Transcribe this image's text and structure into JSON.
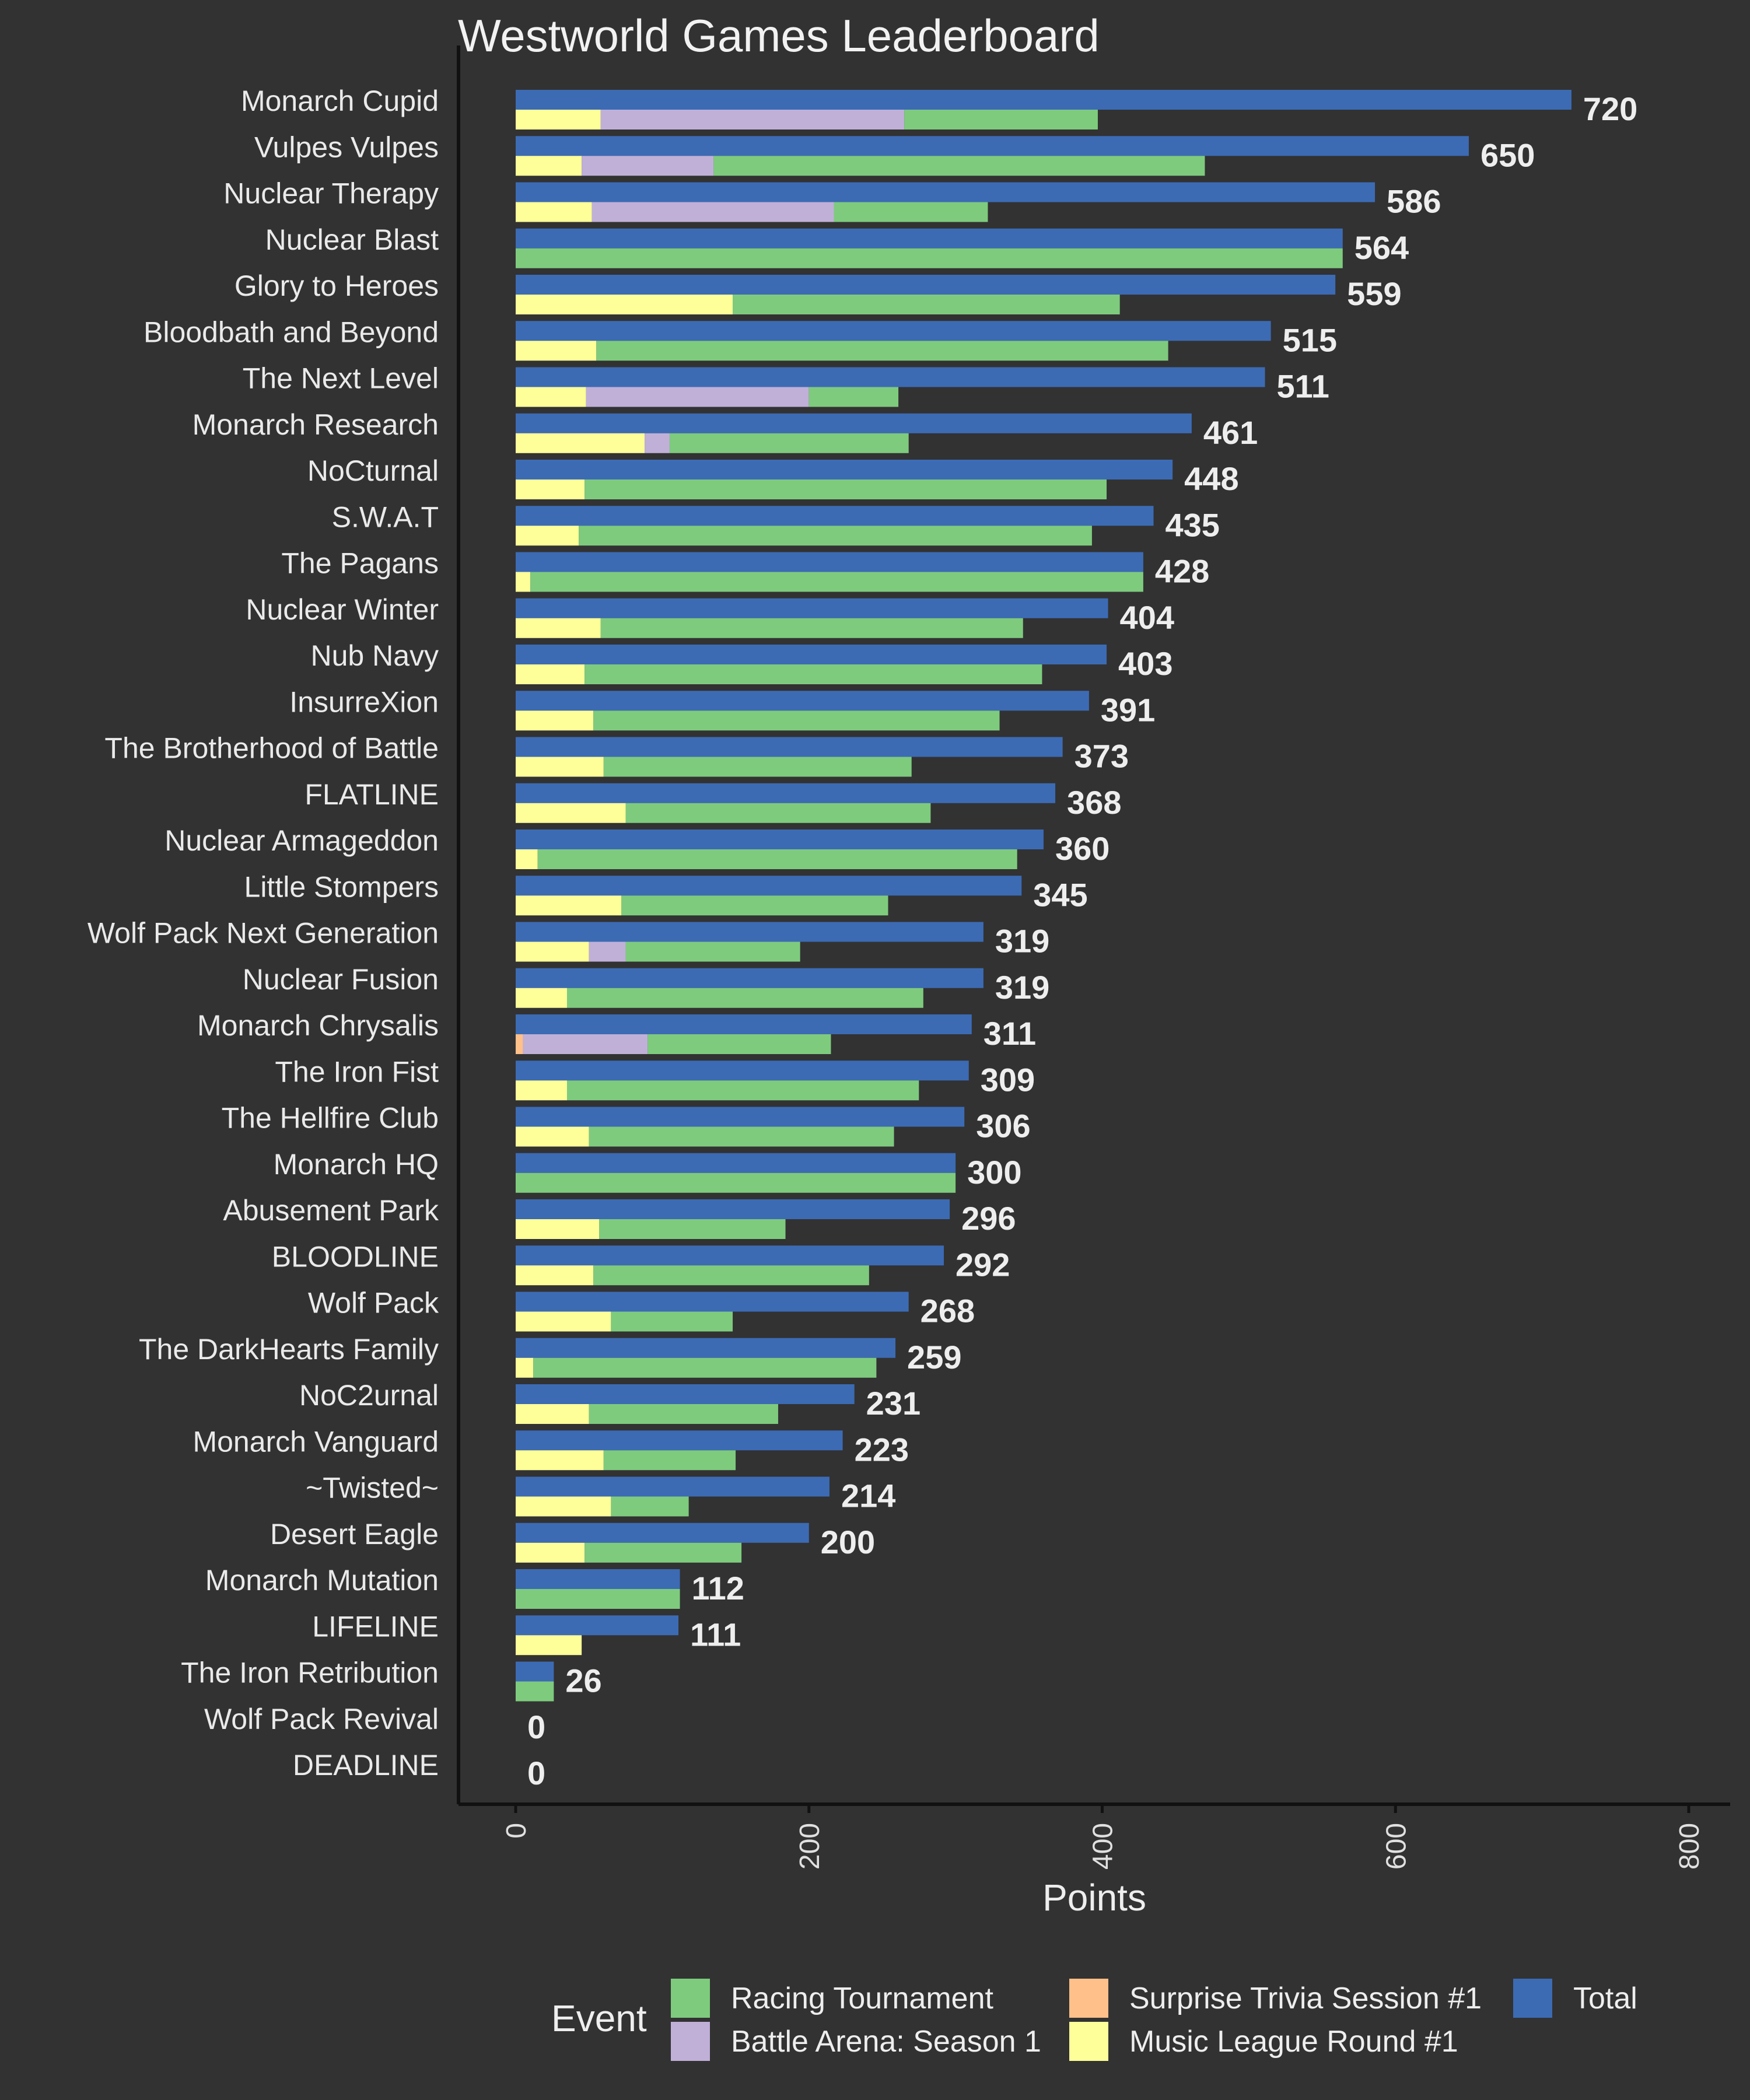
{
  "chart_data": {
    "type": "bar",
    "orientation": "horizontal",
    "title": "Westworld Games Leaderboard",
    "xlabel": "Points",
    "ylabel": "",
    "xlim": [
      0,
      800
    ],
    "xticks": [
      0,
      200,
      400,
      600,
      800
    ],
    "grid": false,
    "legend_position": "bottom",
    "legend_title": "Event",
    "colors": {
      "Total": "#3c6bb4",
      "Racing Tournament": "#7ecb7e",
      "Battle Arena: Season 1": "#c0b0d8",
      "Surprise Trivia Session #1": "#ffc08a",
      "Music League Round #1": "#ffff99"
    },
    "legend": [
      {
        "name": "Racing Tournament",
        "color": "#7ecb7e"
      },
      {
        "name": "Battle Arena: Season 1",
        "color": "#c0b0d8"
      },
      {
        "name": "Surprise Trivia Session #1",
        "color": "#ffc08a"
      },
      {
        "name": "Music League Round #1",
        "color": "#ffff99"
      },
      {
        "name": "Total",
        "color": "#3c6bb4"
      }
    ],
    "categories": [
      "Monarch Cupid",
      "Vulpes Vulpes",
      "Nuclear Therapy",
      "Nuclear Blast",
      "Glory to Heroes",
      "Bloodbath and Beyond",
      "The Next Level",
      "Monarch Research",
      "NoCturnal",
      "S.W.A.T",
      "The Pagans",
      "Nuclear Winter",
      "Nub Navy",
      "InsurreXion",
      "The Brotherhood of Battle",
      "FLATLINE",
      "Nuclear Armageddon",
      "Little Stompers",
      "Wolf Pack Next Generation",
      "Nuclear Fusion",
      "Monarch Chrysalis",
      "The Iron Fist",
      "The Hellfire Club",
      "Monarch HQ",
      "Abusement Park",
      "BLOODLINE",
      "Wolf Pack",
      "The DarkHearts Family",
      "NoC2urnal",
      "Monarch Vanguard",
      "~Twisted~",
      "Desert Eagle",
      "Monarch Mutation",
      "LIFELINE",
      "The Iron Retribution",
      "Wolf Pack Revival",
      "DEADLINE"
    ],
    "totals": [
      720,
      650,
      586,
      564,
      559,
      515,
      511,
      461,
      448,
      435,
      428,
      404,
      403,
      391,
      373,
      368,
      360,
      345,
      319,
      319,
      311,
      309,
      306,
      300,
      296,
      292,
      268,
      259,
      231,
      223,
      214,
      200,
      112,
      111,
      26,
      0,
      0
    ],
    "total_labels": [
      "720",
      "650",
      "586",
      "564",
      "559",
      "515",
      "511",
      "461",
      "448",
      "435",
      "428",
      "404",
      "403",
      "391",
      "373",
      "368",
      "360",
      "345",
      "319",
      "319",
      "311",
      "309",
      "306",
      "300",
      "296",
      "292",
      "268",
      "259",
      "231",
      "223",
      "214",
      "200",
      "112",
      "111",
      "26",
      "0",
      "0"
    ],
    "series": [
      {
        "name": "Music League Round #1",
        "values": [
          58,
          45,
          52,
          0,
          148,
          55,
          48,
          88,
          47,
          43,
          10,
          58,
          47,
          53,
          60,
          75,
          15,
          72,
          50,
          35,
          0,
          35,
          50,
          0,
          57,
          53,
          65,
          12,
          50,
          60,
          65,
          47,
          0,
          45,
          0,
          0,
          0
        ]
      },
      {
        "name": "Surprise Trivia Session #1",
        "values": [
          0,
          0,
          0,
          0,
          0,
          0,
          0,
          0,
          0,
          0,
          0,
          0,
          0,
          0,
          0,
          0,
          0,
          0,
          0,
          0,
          5,
          0,
          0,
          0,
          0,
          0,
          0,
          0,
          0,
          0,
          0,
          0,
          0,
          0,
          0,
          0,
          0
        ]
      },
      {
        "name": "Battle Arena: Season 1",
        "values": [
          207,
          90,
          165,
          0,
          0,
          0,
          152,
          17,
          0,
          0,
          0,
          0,
          0,
          0,
          0,
          0,
          0,
          0,
          25,
          0,
          85,
          0,
          0,
          0,
          0,
          0,
          0,
          0,
          0,
          0,
          0,
          0,
          0,
          0,
          0,
          0,
          0
        ]
      },
      {
        "name": "Racing Tournament",
        "values": [
          132,
          335,
          105,
          564,
          264,
          390,
          61,
          163,
          356,
          350,
          418,
          288,
          312,
          277,
          210,
          208,
          327,
          182,
          119,
          243,
          125,
          240,
          208,
          300,
          127,
          188,
          83,
          234,
          129,
          90,
          53,
          107,
          112,
          0,
          26,
          0,
          0
        ]
      }
    ]
  }
}
